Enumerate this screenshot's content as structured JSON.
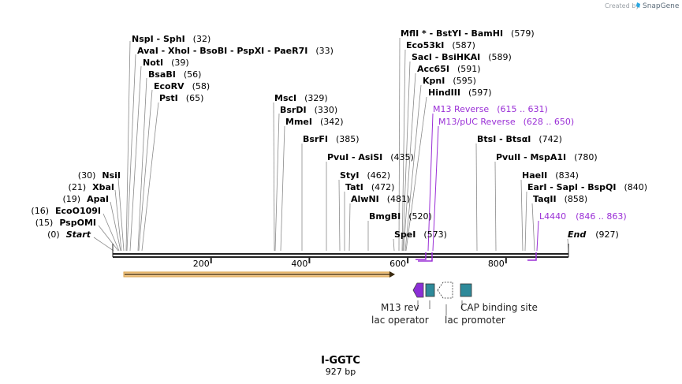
{
  "credit": {
    "text": "Created by",
    "brand": "SnapGene"
  },
  "title": "I-GGTC",
  "length_label": "927 bp",
  "axis": {
    "ticks": [
      {
        "value": 200,
        "label": "200"
      },
      {
        "value": 400,
        "label": "400"
      },
      {
        "value": 600,
        "label": "600"
      },
      {
        "value": 800,
        "label": "800"
      }
    ]
  },
  "sites_right": [
    {
      "name": "NspI",
      "pos": 32,
      "line": "NspI  -  SphI",
      "count": "(32)"
    },
    {
      "name": "AvaI",
      "pos": 33,
      "line": "AvaI  -  XhoI  -  BsoBI  -  PspXI  -  PaeR7I",
      "count": "(33)"
    },
    {
      "name": "NotI",
      "pos": 39,
      "line": "NotI",
      "count": "(39)"
    },
    {
      "name": "BsaBI",
      "pos": 56,
      "line": "BsaBI",
      "count": "(56)"
    },
    {
      "name": "EcoRV",
      "pos": 58,
      "line": "EcoRV",
      "count": "(58)"
    },
    {
      "name": "PstI",
      "pos": 65,
      "line": "PstI",
      "count": "(65)"
    },
    {
      "name": "MscI",
      "pos": 329,
      "line": "MscI",
      "count": "(329)"
    },
    {
      "name": "BsrDI",
      "pos": 330,
      "line": "BsrDI",
      "count": "(330)"
    },
    {
      "name": "MmeI",
      "pos": 342,
      "line": "MmeI",
      "count": "(342)"
    },
    {
      "name": "BsrFI",
      "pos": 385,
      "line": "BsrFI",
      "count": "(385)"
    },
    {
      "name": "PvuI",
      "pos": 435,
      "line": "PvuI  -  AsiSI",
      "count": "(435)"
    },
    {
      "name": "StyI",
      "pos": 462,
      "line": "StyI",
      "count": "(462)"
    },
    {
      "name": "TatI",
      "pos": 472,
      "line": "TatI",
      "count": "(472)"
    },
    {
      "name": "AlwNI",
      "pos": 481,
      "line": "AlwNI",
      "count": "(481)"
    },
    {
      "name": "BmgBI",
      "pos": 520,
      "line": "BmgBI",
      "count": "(520)"
    },
    {
      "name": "SpeI",
      "pos": 573,
      "line": "SpeI",
      "count": "(573)"
    },
    {
      "name": "MflI",
      "pos": 579,
      "line": "MflI *  -  BstYI  -  BamHI",
      "count": "(579)"
    },
    {
      "name": "Eco53kI",
      "pos": 587,
      "line": "Eco53kI",
      "count": "(587)"
    },
    {
      "name": "SacI",
      "pos": 589,
      "line": "SacI  -  BsiHKAI",
      "count": "(589)"
    },
    {
      "name": "Acc65I",
      "pos": 591,
      "line": "Acc65I",
      "count": "(591)"
    },
    {
      "name": "KpnI",
      "pos": 595,
      "line": "KpnI",
      "count": "(595)"
    },
    {
      "name": "HindIII",
      "pos": 597,
      "line": "HindIII",
      "count": "(597)"
    },
    {
      "name": "BtsI",
      "pos": 742,
      "line": "BtsI  -  BtsαI",
      "count": "(742)"
    },
    {
      "name": "PvuII",
      "pos": 780,
      "line": "PvuII  -  MspA1I",
      "count": "(780)"
    },
    {
      "name": "HaeII",
      "pos": 834,
      "line": "HaeII",
      "count": "(834)"
    },
    {
      "name": "EarI",
      "pos": 840,
      "line": "EarI  -  SapI  -  BspQI",
      "count": "(840)"
    },
    {
      "name": "TaqII",
      "pos": 858,
      "line": "TaqII",
      "count": "(858)"
    },
    {
      "name": "End",
      "pos": 927,
      "line": "End",
      "count": "(927)"
    }
  ],
  "sites_left": [
    {
      "name": "NsiI",
      "pos": 30,
      "count": "(30)"
    },
    {
      "name": "XbaI",
      "pos": 21,
      "count": "(21)"
    },
    {
      "name": "ApaI",
      "pos": 19,
      "count": "(19)"
    },
    {
      "name": "EcoO109I",
      "pos": 16,
      "count": "(16)"
    },
    {
      "name": "PspOMI",
      "pos": 15,
      "count": "(15)"
    },
    {
      "name": "Start",
      "pos": 0,
      "count": "(0)"
    }
  ],
  "primers": [
    {
      "name": "M13 Reverse",
      "range": "(615 .. 631)",
      "start": 615,
      "end": 631
    },
    {
      "name": "M13/pUC Reverse",
      "range": "(628 .. 650)",
      "start": 628,
      "end": 650
    },
    {
      "name": "L4440",
      "range": "(846 .. 863)",
      "start": 846,
      "end": 863
    }
  ],
  "features": [
    {
      "name": "M13 rev",
      "color": "#8b2fd6"
    },
    {
      "name": "lac operator",
      "color": "#2e8a9a"
    },
    {
      "name": "lac promoter",
      "color": "#ffffff"
    },
    {
      "name": "CAP binding site",
      "color": "#2e8a9a"
    }
  ],
  "colors": {
    "primer": "#9a2fd6",
    "orf_fill": "#f3c98b",
    "orf_stroke": "#d8a24a",
    "backbone": "#222222"
  }
}
